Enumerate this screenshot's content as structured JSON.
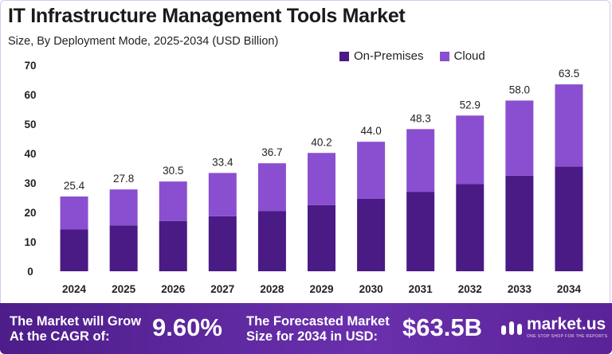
{
  "header": {
    "title": "IT Infrastructure Management Tools Market",
    "subtitle": "Size, By Deployment Mode, 2025-2034 (USD Billion)"
  },
  "legend": [
    {
      "label": "On-Premises",
      "color": "#4a1a85"
    },
    {
      "label": "Cloud",
      "color": "#8a4fd0"
    }
  ],
  "chart_data": {
    "type": "bar",
    "stacked": true,
    "categories": [
      "2024",
      "2025",
      "2026",
      "2027",
      "2028",
      "2029",
      "2030",
      "2031",
      "2032",
      "2033",
      "2034"
    ],
    "series": [
      {
        "name": "On-Premises",
        "color": "#4a1a85",
        "values": [
          14.2,
          15.6,
          17.1,
          18.7,
          20.5,
          22.5,
          24.6,
          27.0,
          29.6,
          32.5,
          35.6
        ]
      },
      {
        "name": "Cloud",
        "color": "#8a4fd0",
        "values": [
          11.2,
          12.2,
          13.4,
          14.7,
          16.2,
          17.7,
          19.4,
          21.3,
          23.3,
          25.5,
          27.9
        ]
      }
    ],
    "totals": [
      "25.4",
      "27.8",
      "30.5",
      "33.4",
      "36.7",
      "40.2",
      "44.0",
      "48.3",
      "52.9",
      "58.0",
      "63.5"
    ],
    "ylim": [
      0,
      70
    ],
    "yticks": [
      "0",
      "10",
      "20",
      "30",
      "40",
      "50",
      "60",
      "70"
    ],
    "grid": false,
    "legend_position": "top-right"
  },
  "footer": {
    "cagr_text_line1": "The Market will Grow",
    "cagr_text_line2": "At the CAGR of:",
    "cagr_value": "9.60%",
    "forecast_text_line1": "The Forecasted Market",
    "forecast_text_line2": "Size for 2034 in USD:",
    "forecast_value": "$63.5B",
    "brand_name": "market.us",
    "brand_tagline": "ONE STOP SHOP FOR THE REPORTS"
  }
}
